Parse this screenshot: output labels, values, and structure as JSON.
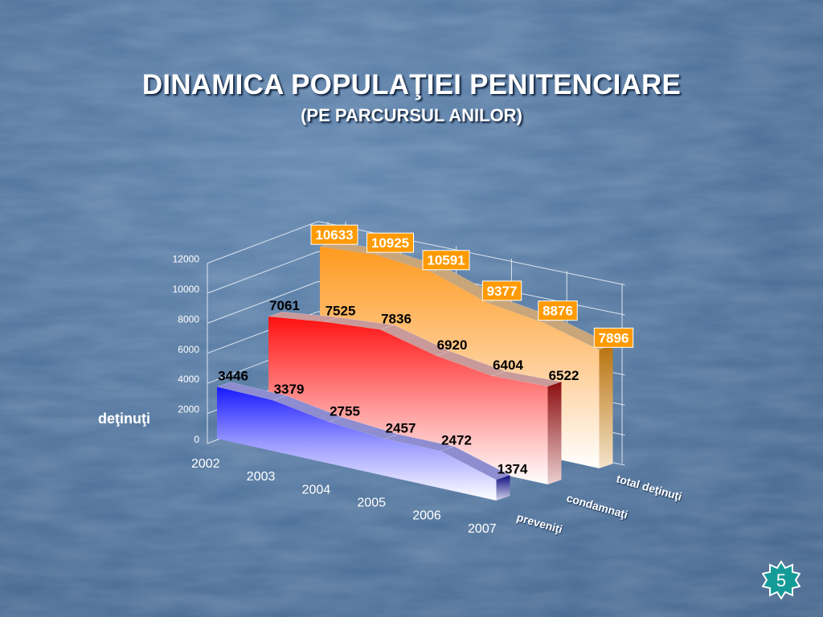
{
  "title": "DINAMICA POPULAŢIEI PENITENCIARE",
  "subtitle": "(PE PARCURSUL ANILOR)",
  "slide_number": "5",
  "chart_data": {
    "type": "area",
    "style": "3d",
    "categories": [
      "2002",
      "2003",
      "2004",
      "2005",
      "2006",
      "2007"
    ],
    "ylabel": "deţinuţi",
    "ylim": [
      0,
      12000
    ],
    "yticks": [
      0,
      2000,
      4000,
      6000,
      8000,
      10000,
      12000
    ],
    "series": [
      {
        "name": "total deţinuţi",
        "values": [
          10633,
          10925,
          10591,
          9377,
          8876,
          7896
        ],
        "color": "#ff9a1e",
        "label_style": "boxed"
      },
      {
        "name": "condamnaţi",
        "values": [
          7061,
          7525,
          7836,
          6920,
          6404,
          6522
        ],
        "color": "#ff1010",
        "label_style": "plain"
      },
      {
        "name": "preveniţi",
        "values": [
          3446,
          3379,
          2755,
          2457,
          2472,
          1374
        ],
        "color": "#1818ff",
        "label_style": "plain"
      }
    ]
  }
}
